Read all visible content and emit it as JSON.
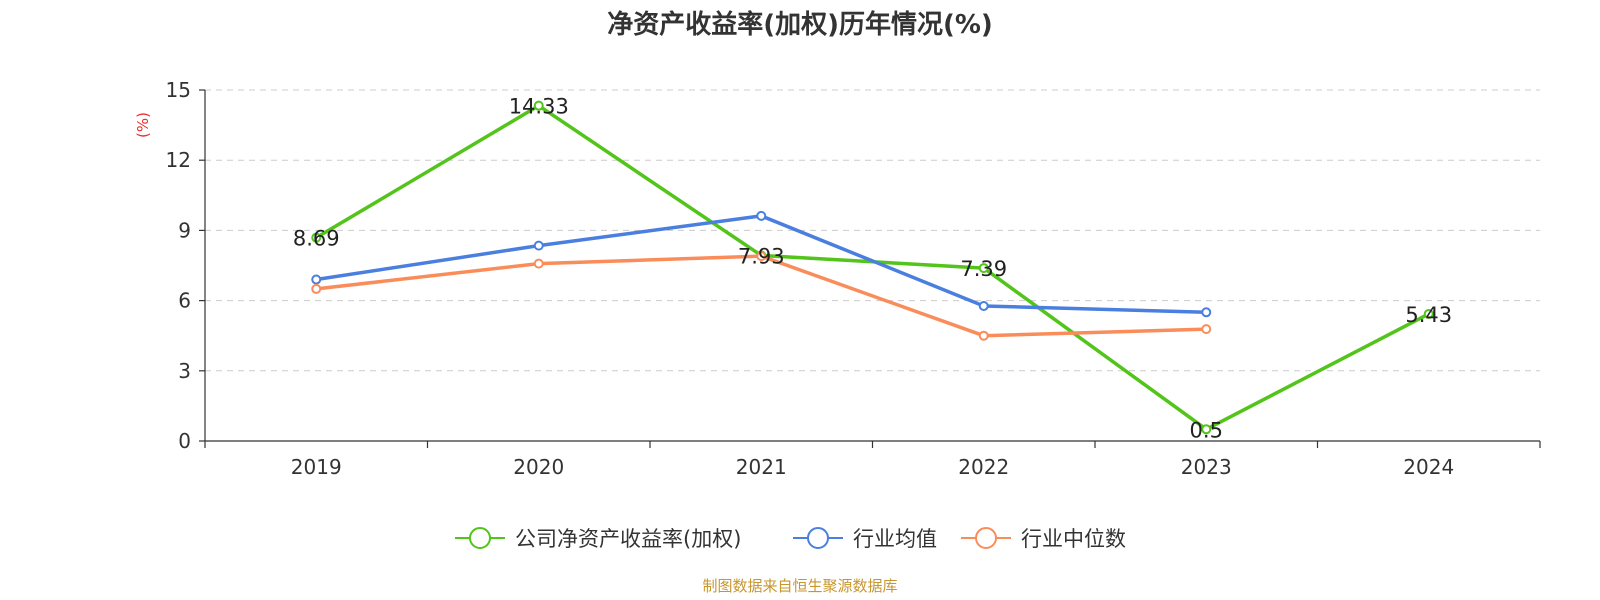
{
  "chart_data": {
    "type": "line",
    "title": "净资产收益率(加权)历年情况(%)",
    "ylabel": "(%)",
    "xlabel": "",
    "ylim": [
      0,
      15
    ],
    "yticks": [
      0,
      3,
      6,
      9,
      12,
      15
    ],
    "grid": true,
    "categories": [
      "2019",
      "2020",
      "2021",
      "2022",
      "2023",
      "2024"
    ],
    "series": [
      {
        "name": "公司净资产收益率(加权)",
        "color": "#52c41a",
        "values": [
          8.69,
          14.33,
          7.93,
          7.39,
          0.5,
          5.43
        ],
        "labels": [
          "8.69",
          "14.33",
          "7.93",
          "7.39",
          "0.5",
          "5.43"
        ]
      },
      {
        "name": "行业均值",
        "color": "#4a7fe0",
        "values": [
          6.9,
          8.35,
          9.62,
          5.77,
          5.5,
          null
        ]
      },
      {
        "name": "行业中位数",
        "color": "#fa8c5a",
        "values": [
          6.5,
          7.58,
          7.9,
          4.5,
          4.78,
          null
        ]
      }
    ],
    "legend_position": "bottom",
    "source": "制图数据来自恒生聚源数据库"
  },
  "colors": {
    "axis": "#333333",
    "grid": "#cccccc",
    "ylabel": "#e8302a",
    "source": "#c8962e"
  }
}
